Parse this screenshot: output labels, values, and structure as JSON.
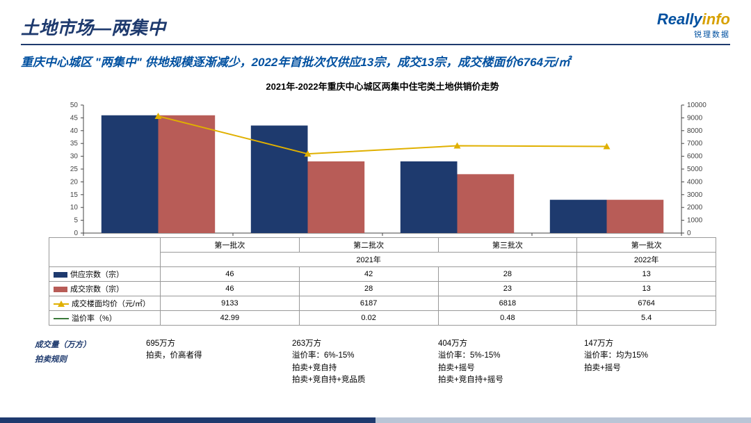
{
  "header": {
    "title": "土地市场—两集中",
    "logo_main1": "Really",
    "logo_main2": "info",
    "logo_sub": "锐理数据"
  },
  "subtitle": "重庆中心城区 \"两集中\" 供地规模逐渐减少，2022年首批次仅供应13宗，成交13宗，成交楼面价6764元/㎡",
  "chart": {
    "type": "bar+line",
    "title": "2021年-2022年重庆中心城区两集中住宅类土地供销价走势",
    "categories": [
      "第一批次",
      "第二批次",
      "第三批次",
      "第一批次"
    ],
    "year_groups": [
      {
        "label": "2021年",
        "span": 3
      },
      {
        "label": "2022年",
        "span": 1
      }
    ],
    "series1_name": "供应宗数（宗）",
    "series1_color": "#1e3a6e",
    "series1_values": [
      46,
      46,
      42,
      42,
      28,
      28,
      13,
      13
    ],
    "series1_display": [
      46,
      42,
      28,
      13
    ],
    "series2_name": "成交宗数（宗）",
    "series2_color": "#b85c57",
    "series2_display": [
      46,
      28,
      23,
      13
    ],
    "series3_name": "成交楼面均价（元/㎡）",
    "series3_color": "#e0b000",
    "series3_display": [
      9133,
      6187,
      6818,
      6764
    ],
    "series4_name": "溢价率（%）",
    "series4_color": "#3a7a3a",
    "series4_display": [
      "42.99",
      "0.02",
      "0.48",
      "5.4"
    ],
    "left_ylim": [
      0,
      50
    ],
    "left_ytick_step": 5,
    "right_ylim": [
      0,
      10000
    ],
    "right_ytick_step": 1000,
    "bar_width": 0.38,
    "plot_bg": "#ffffff",
    "axis_color": "#444444",
    "axis_fontsize": 10,
    "title_fontsize": 13
  },
  "info": {
    "label1": "成交量（万方）",
    "label2": "拍卖规则",
    "cols": [
      {
        "vol": "695万方",
        "rules": [
          "拍卖，价高者得"
        ]
      },
      {
        "vol": "263万方",
        "rules": [
          "溢价率：6%-15%",
          "拍卖+竞自持",
          "拍卖+竞自持+竞品质"
        ]
      },
      {
        "vol": "404万方",
        "rules": [
          "溢价率：5%-15%",
          "拍卖+摇号",
          "拍卖+竞自持+摇号"
        ]
      },
      {
        "vol": "147万方",
        "rules": [
          "溢价率：均为15%",
          "拍卖+摇号"
        ]
      }
    ]
  }
}
